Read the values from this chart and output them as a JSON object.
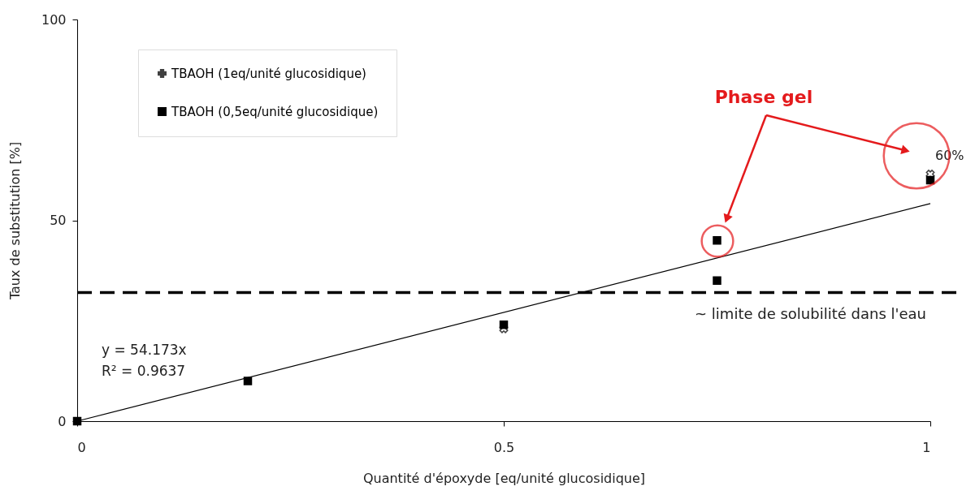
{
  "chart_data": {
    "type": "scatter",
    "xlabel": "Quantité d'époxyde [eq/unité glucosidique]",
    "ylabel": "Taux de substitution [%]",
    "xlim": [
      0,
      1
    ],
    "ylim": [
      0,
      100
    ],
    "xticks": [
      {
        "value": 0,
        "label": "0"
      },
      {
        "value": 0.5,
        "label": "0.5"
      },
      {
        "value": 1,
        "label": "1"
      }
    ],
    "yticks": [
      0,
      50,
      100
    ],
    "grid": false,
    "legend": "top left",
    "series": [
      {
        "name": "TBAOH (1eq/unité glucosidique)",
        "color": "#404040",
        "marker": "cross",
        "x": [
          0.5,
          1
        ],
        "values": [
          23,
          61.5
        ]
      },
      {
        "name": "TBAOH (0,5eq/unité glucosidique)",
        "color": "#000000",
        "marker": "square",
        "x": [
          0,
          0.2,
          0.5,
          0.75,
          0.75,
          1
        ],
        "values": [
          0,
          10,
          24,
          45,
          35,
          60
        ]
      },
      {
        "type": "line",
        "color": "#000000",
        "marker": "none",
        "line_style": "solid",
        "x": [
          0,
          1
        ],
        "values": [
          0,
          54.173
        ]
      }
    ],
    "ref_lines": [
      {
        "axis": "y",
        "value": 32,
        "label": "~ limite de solubilité dans l'eau",
        "color": "#000000",
        "line_style": "dashed"
      }
    ],
    "annotations": [
      "y = 54.173x",
      "R² = 0.9637",
      "Phase gel",
      {
        "text": "60%",
        "x": 1,
        "y": 60
      }
    ]
  }
}
